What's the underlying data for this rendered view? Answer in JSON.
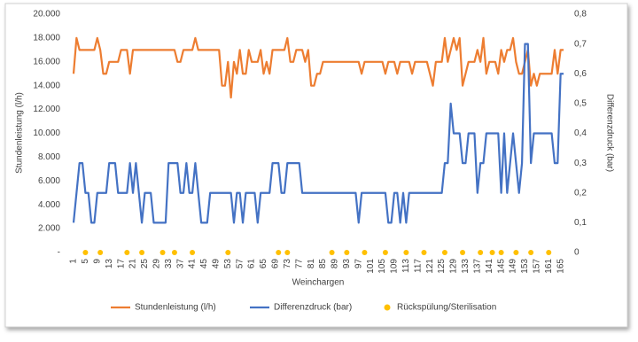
{
  "chart_data": {
    "type": "line",
    "y_label": "Stundenleistung  (l/h)",
    "y2_label": "Differenzdruck  (bar)",
    "x_label": "Weinchargen",
    "categories": [
      "1",
      null,
      null,
      null,
      "5",
      null,
      null,
      null,
      "9",
      null,
      null,
      null,
      "13",
      null,
      null,
      null,
      "17",
      null,
      null,
      null,
      "21",
      null,
      null,
      null,
      "25",
      null,
      null,
      null,
      "29",
      null,
      null,
      null,
      "33",
      null,
      null,
      null,
      "37",
      null,
      null,
      null,
      "41",
      null,
      null,
      null,
      "45",
      null,
      null,
      null,
      "49",
      null,
      null,
      null,
      "53",
      null,
      null,
      null,
      "57",
      null,
      null,
      null,
      "61",
      null,
      null,
      null,
      "65",
      null,
      null,
      null,
      "69",
      null,
      null,
      null,
      "73",
      null,
      null,
      null,
      "77",
      null,
      null,
      null,
      "81",
      null,
      null,
      null,
      "85",
      null,
      null,
      null,
      "89",
      null,
      null,
      null,
      "93",
      null,
      null,
      null,
      "97",
      null,
      null,
      null,
      "101",
      null,
      null,
      null,
      "105",
      null,
      null,
      null,
      "109",
      null,
      null,
      null,
      "113",
      null,
      null,
      null,
      "117",
      null,
      null,
      null,
      "121",
      null,
      null,
      null,
      "125",
      null,
      null,
      null,
      "129",
      null,
      null,
      null,
      "133",
      null,
      null,
      null,
      "137",
      null,
      null,
      null,
      "141",
      null,
      null,
      null,
      "145",
      null,
      null,
      null,
      "149",
      null,
      null,
      null,
      "153",
      null,
      null,
      null,
      "157",
      null,
      null,
      null,
      "161",
      null,
      null,
      null,
      "165",
      null
    ],
    "ylim": [
      0,
      20000
    ],
    "yticks": [
      {
        "value": 0,
        "label": "-"
      },
      {
        "value": 2000,
        "label": "2.000"
      },
      {
        "value": 4000,
        "label": "4.000"
      },
      {
        "value": 6000,
        "label": "6.000"
      },
      {
        "value": 8000,
        "label": "8.000"
      },
      {
        "value": 10000,
        "label": "10.000"
      },
      {
        "value": 12000,
        "label": "12.000"
      },
      {
        "value": 14000,
        "label": "14.000"
      },
      {
        "value": 16000,
        "label": "16.000"
      },
      {
        "value": 18000,
        "label": "18.000"
      },
      {
        "value": 20000,
        "label": "20.000"
      }
    ],
    "y2lim": [
      0,
      0.8
    ],
    "y2ticks": [
      0,
      {
        "value": 0.1,
        "label": "0,1"
      },
      {
        "value": 0.2,
        "label": "0,2"
      },
      {
        "value": 0.3,
        "label": "0,3"
      },
      {
        "value": 0.4,
        "label": "0,4"
      },
      {
        "value": 0.5,
        "label": "0,5"
      },
      {
        "value": 0.6,
        "label": "0,6"
      },
      {
        "value": 0.7,
        "label": "0,7"
      },
      {
        "value": 0.8,
        "label": "0,8"
      }
    ],
    "legend": "bottom",
    "series": [
      {
        "name": "Stundenleistung (l/h)",
        "color": "#ED7D31",
        "kind": "line",
        "values": [
          15000,
          18000,
          17000,
          17000,
          17000,
          17000,
          17000,
          17000,
          18000,
          17000,
          15000,
          15000,
          16000,
          16000,
          16000,
          16000,
          17000,
          17000,
          17000,
          15000,
          17000,
          17000,
          17000,
          17000,
          17000,
          17000,
          17000,
          17000,
          17000,
          17000,
          17000,
          17000,
          17000,
          17000,
          17000,
          16000,
          16000,
          17000,
          17000,
          17000,
          17000,
          18000,
          17000,
          17000,
          17000,
          17000,
          17000,
          17000,
          17000,
          17000,
          14000,
          14000,
          16000,
          13000,
          16000,
          15000,
          17000,
          15000,
          15000,
          17000,
          16000,
          16000,
          16000,
          17000,
          15000,
          16000,
          15000,
          17000,
          17000,
          17000,
          17000,
          17000,
          18000,
          16000,
          16000,
          17000,
          17000,
          17000,
          16000,
          17000,
          14000,
          14000,
          15000,
          15000,
          16000,
          16000,
          16000,
          16000,
          16000,
          16000,
          16000,
          16000,
          16000,
          16000,
          16000,
          16000,
          16000,
          15000,
          16000,
          16000,
          16000,
          16000,
          16000,
          16000,
          16000,
          15000,
          16000,
          16000,
          16000,
          15000,
          16000,
          16000,
          16000,
          16000,
          15000,
          16000,
          16000,
          16000,
          16000,
          16000,
          15000,
          14000,
          16000,
          16000,
          16000,
          18000,
          16000,
          17000,
          18000,
          17000,
          18000,
          14000,
          15000,
          16000,
          16000,
          16000,
          17000,
          16000,
          18000,
          15000,
          16000,
          16000,
          16000,
          15000,
          17000,
          16000,
          17000,
          17000,
          18000,
          16000,
          15000,
          15000,
          16000,
          17000,
          14000,
          15000,
          14000,
          15000,
          15000,
          15000,
          15000,
          15000,
          17000,
          15000,
          17000,
          17000
        ]
      },
      {
        "name": "Differenzdruck (bar)",
        "color": "#4472C4",
        "kind": "line",
        "axis": "y2",
        "values": [
          0.1,
          0.2,
          0.3,
          0.3,
          0.2,
          0.2,
          0.1,
          0.1,
          0.2,
          0.2,
          0.2,
          0.2,
          0.3,
          0.3,
          0.3,
          0.2,
          0.2,
          0.2,
          0.2,
          0.3,
          0.2,
          0.3,
          0.2,
          0.1,
          0.2,
          0.2,
          0.2,
          0.1,
          0.1,
          0.1,
          0.1,
          0.1,
          0.3,
          0.3,
          0.3,
          0.3,
          0.2,
          0.2,
          0.3,
          0.2,
          0.2,
          0.3,
          0.2,
          0.1,
          0.1,
          0.1,
          0.2,
          0.2,
          0.2,
          0.2,
          0.2,
          0.2,
          0.2,
          0.2,
          0.1,
          0.2,
          0.2,
          0.1,
          0.2,
          0.2,
          0.2,
          0.2,
          0.1,
          0.2,
          0.2,
          0.2,
          0.2,
          0.3,
          0.3,
          0.3,
          0.2,
          0.2,
          0.3,
          0.3,
          0.3,
          0.3,
          0.3,
          0.2,
          0.2,
          0.2,
          0.2,
          0.2,
          0.2,
          0.2,
          0.2,
          0.2,
          0.2,
          0.2,
          0.2,
          0.2,
          0.2,
          0.2,
          0.2,
          0.2,
          0.2,
          0.2,
          0.1,
          0.2,
          0.2,
          0.2,
          0.2,
          0.2,
          0.2,
          0.2,
          0.2,
          0.2,
          0.1,
          0.1,
          0.2,
          0.2,
          0.1,
          0.2,
          0.1,
          0.2,
          0.2,
          0.2,
          0.2,
          0.2,
          0.2,
          0.2,
          0.2,
          0.2,
          0.2,
          0.2,
          0.2,
          0.3,
          0.3,
          0.5,
          0.4,
          0.4,
          0.4,
          0.3,
          0.3,
          0.4,
          0.4,
          0.4,
          0.2,
          0.3,
          0.3,
          0.4,
          0.4,
          0.4,
          0.4,
          0.4,
          0.2,
          0.4,
          0.2,
          0.3,
          0.4,
          0.3,
          0.2,
          0.3,
          0.7,
          0.7,
          0.3,
          0.4,
          0.4,
          0.4,
          0.4,
          0.4,
          0.4,
          0.4,
          0.3,
          0.3,
          0.6,
          0.6
        ]
      },
      {
        "name": "Rückspülung/Sterilisation",
        "color": "#FFC000",
        "kind": "dot",
        "values": [
          null,
          null,
          null,
          null,
          0,
          null,
          null,
          null,
          null,
          0,
          null,
          null,
          null,
          null,
          null,
          null,
          null,
          null,
          0,
          null,
          null,
          null,
          null,
          0,
          null,
          null,
          null,
          null,
          null,
          null,
          0,
          null,
          null,
          null,
          0,
          null,
          null,
          null,
          null,
          null,
          0,
          null,
          null,
          null,
          null,
          null,
          null,
          null,
          null,
          null,
          null,
          null,
          0,
          null,
          null,
          null,
          null,
          null,
          null,
          null,
          null,
          null,
          null,
          null,
          null,
          null,
          null,
          null,
          null,
          0,
          null,
          null,
          0,
          null,
          null,
          null,
          null,
          null,
          null,
          null,
          null,
          null,
          null,
          null,
          null,
          null,
          null,
          0,
          null,
          null,
          null,
          null,
          0,
          null,
          null,
          null,
          null,
          null,
          0,
          null,
          null,
          null,
          null,
          null,
          null,
          0,
          null,
          null,
          null,
          null,
          null,
          null,
          0,
          null,
          null,
          null,
          null,
          null,
          0,
          null,
          null,
          null,
          null,
          null,
          null,
          0,
          null,
          null,
          null,
          null,
          null,
          0,
          null,
          null,
          null,
          null,
          null,
          0,
          null,
          null,
          null,
          0,
          null,
          null,
          0,
          null,
          null,
          null,
          null,
          0,
          null,
          null,
          null,
          null,
          0,
          null,
          null,
          null,
          null,
          null,
          0,
          null,
          null,
          null,
          null,
          null
        ]
      }
    ]
  }
}
